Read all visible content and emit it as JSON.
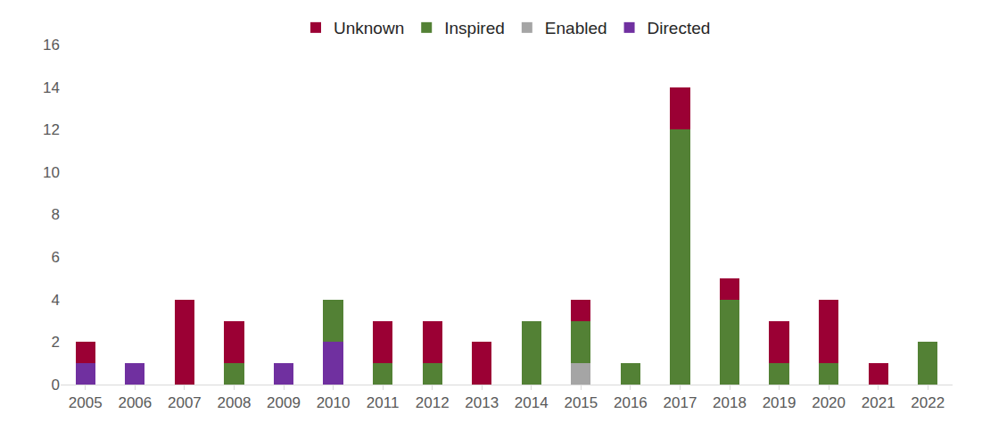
{
  "chart_data": {
    "type": "bar",
    "stacked": true,
    "legend": "top",
    "grid": false,
    "categories": [
      "2005",
      "2006",
      "2007",
      "2008",
      "2009",
      "2010",
      "2011",
      "2012",
      "2013",
      "2014",
      "2015",
      "2016",
      "2017",
      "2018",
      "2019",
      "2020",
      "2021",
      "2022"
    ],
    "series": [
      {
        "name": "Directed",
        "color": "#7030a0",
        "values": [
          1,
          1,
          0,
          0,
          1,
          2,
          0,
          0,
          0,
          0,
          0,
          0,
          0,
          0,
          0,
          0,
          0,
          0
        ]
      },
      {
        "name": "Enabled",
        "color": "#a5a5a5",
        "values": [
          0,
          0,
          0,
          0,
          0,
          0,
          0,
          0,
          0,
          0,
          1,
          0,
          0,
          0,
          0,
          0,
          0,
          0
        ]
      },
      {
        "name": "Inspired",
        "color": "#538135",
        "values": [
          0,
          0,
          0,
          1,
          0,
          2,
          1,
          1,
          0,
          3,
          2,
          1,
          12,
          4,
          1,
          1,
          0,
          2
        ]
      },
      {
        "name": "Unknown",
        "color": "#9b0034",
        "values": [
          1,
          0,
          4,
          2,
          0,
          0,
          2,
          2,
          2,
          0,
          1,
          0,
          2,
          1,
          2,
          3,
          1,
          0
        ]
      }
    ],
    "ylim": [
      0,
      16
    ],
    "yticks": [
      0,
      2,
      4,
      6,
      8,
      10,
      12,
      14,
      16
    ]
  }
}
